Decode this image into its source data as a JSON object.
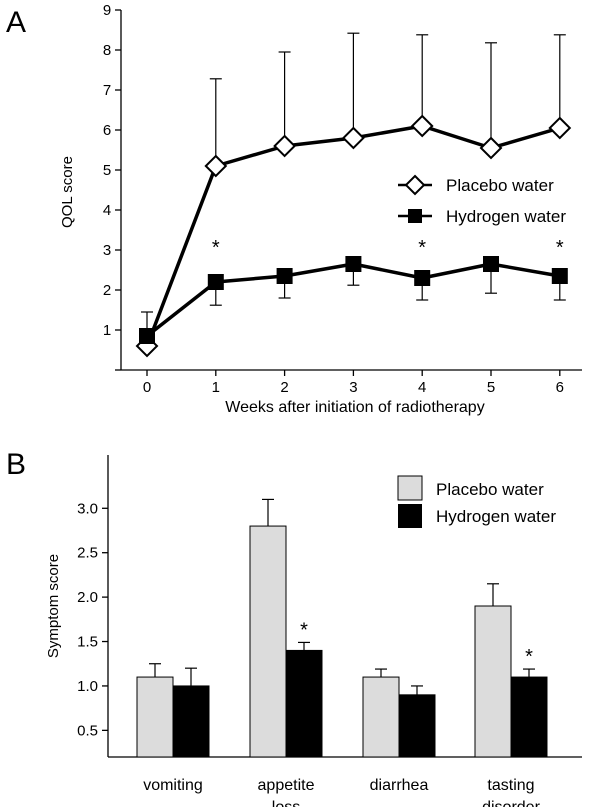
{
  "chart_data": [
    {
      "panel": "A",
      "type": "line",
      "title": "",
      "xlabel": "Weeks after initiation of radiotherapy",
      "ylabel": "QOL score",
      "xlim": [
        -0.6,
        6.5
      ],
      "ylim": [
        0,
        9
      ],
      "x": [
        0,
        1,
        2,
        3,
        4,
        5,
        6
      ],
      "x_ticks": [
        "0",
        "1",
        "2",
        "3",
        "4",
        "5",
        "6"
      ],
      "y_ticks": [
        "1",
        "2",
        "3",
        "4",
        "5",
        "6",
        "7",
        "8",
        "9"
      ],
      "series": [
        {
          "name": "Placebo water",
          "marker": "diamond-open",
          "values": [
            0.6,
            5.1,
            5.6,
            5.8,
            6.1,
            5.55,
            6.05
          ],
          "error_upper": [
            null,
            7.28,
            7.95,
            8.42,
            8.38,
            8.18,
            8.38
          ],
          "error_lower": []
        },
        {
          "name": "Hydrogen water",
          "marker": "square-filled",
          "values": [
            0.85,
            2.2,
            2.35,
            2.65,
            2.3,
            2.65,
            2.35
          ],
          "error_upper": [
            1.45,
            null,
            null,
            null,
            null,
            null,
            null
          ],
          "error_lower": [
            null,
            1.62,
            1.8,
            2.12,
            1.75,
            1.92,
            1.75
          ]
        }
      ],
      "significance_marks": [
        {
          "x": 1,
          "label": "*"
        },
        {
          "x": 4,
          "label": "*"
        },
        {
          "x": 6,
          "label": "*"
        }
      ],
      "legend_position": "center-right"
    },
    {
      "panel": "B",
      "type": "bar",
      "title": "",
      "xlabel": "",
      "ylabel": "Symptom score",
      "ylim": [
        0.2,
        3.6
      ],
      "y_ticks": [
        "0.5",
        "1.0",
        "1.5",
        "2.0",
        "2.5",
        "3.0"
      ],
      "categories": [
        [
          "vomiting"
        ],
        [
          "appetite",
          "loss"
        ],
        [
          "diarrhea"
        ],
        [
          "tasting",
          "disorder"
        ]
      ],
      "series": [
        {
          "name": "Placebo water",
          "color": "#dcdcdc",
          "values": [
            1.1,
            2.8,
            1.1,
            1.9
          ],
          "error": [
            0.15,
            0.3,
            0.09,
            0.25
          ]
        },
        {
          "name": "Hydrogen water",
          "color": "#000000",
          "values": [
            1.0,
            1.4,
            0.9,
            1.1
          ],
          "error": [
            0.2,
            0.09,
            0.1,
            0.09
          ]
        }
      ],
      "significance_marks": [
        {
          "category_index": 1,
          "series_index": 1,
          "label": "*"
        },
        {
          "category_index": 3,
          "series_index": 1,
          "label": "*"
        }
      ],
      "legend_position": "top-right"
    }
  ]
}
